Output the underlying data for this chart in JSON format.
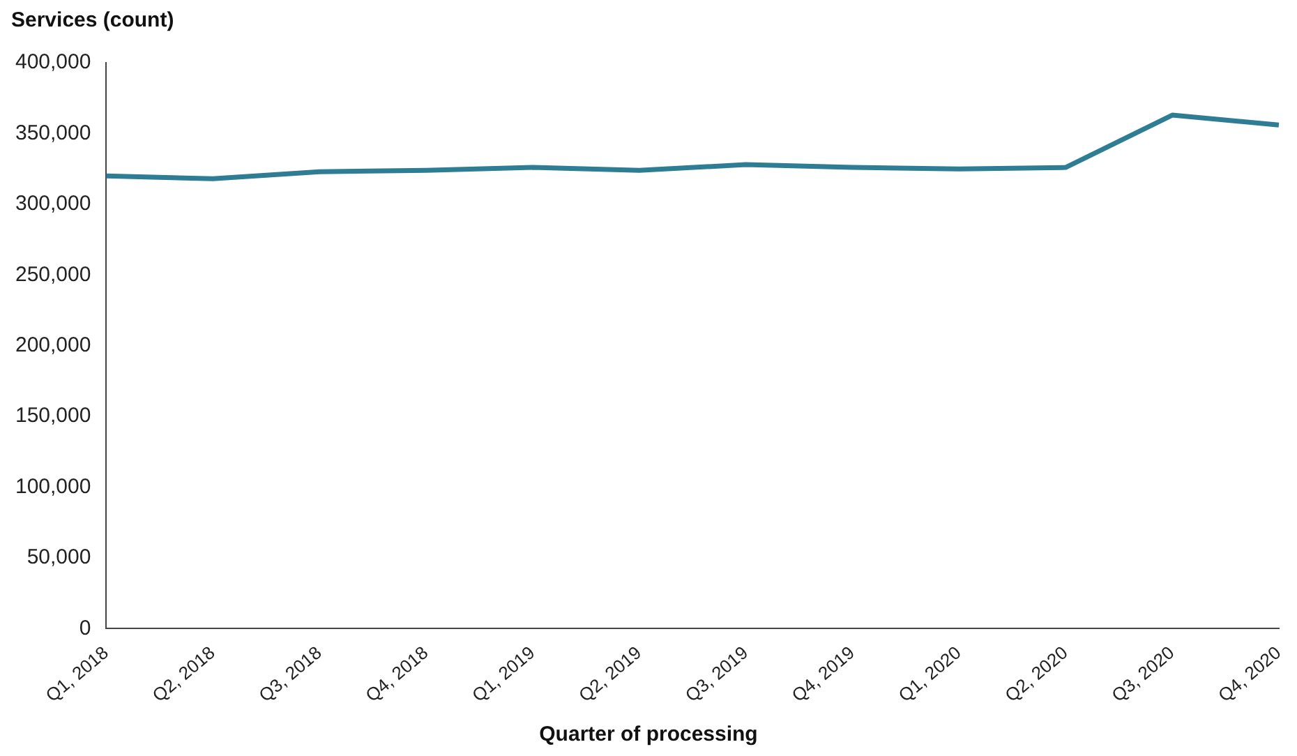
{
  "chart_data": {
    "type": "line",
    "ylabel": "Services (count)",
    "xlabel": "Quarter of processing",
    "categories": [
      "Q1, 2018",
      "Q2, 2018",
      "Q3, 2018",
      "Q4, 2018",
      "Q1, 2019",
      "Q2, 2019",
      "Q3, 2019",
      "Q4, 2019",
      "Q1, 2020",
      "Q2, 2020",
      "Q3, 2020",
      "Q4, 2020"
    ],
    "series": [
      {
        "color": "#2e7d94",
        "values": [
          320000,
          318000,
          323000,
          324000,
          326000,
          324000,
          328000,
          326000,
          325000,
          326000,
          363000,
          356000
        ]
      }
    ],
    "ylim": [
      0,
      400000
    ],
    "yticks": [
      0,
      {
        "value": 50000,
        "label": "50,000"
      },
      {
        "value": 100000,
        "label": "100,000"
      },
      {
        "value": 150000,
        "label": "150,000"
      },
      {
        "value": 200000,
        "label": "200,000"
      },
      {
        "value": 250000,
        "label": "250,000"
      },
      {
        "value": 300000,
        "label": "300,000"
      },
      {
        "value": 350000,
        "label": "350,000"
      },
      {
        "value": 400000,
        "label": "400,000"
      }
    ],
    "grid": false,
    "legend": false,
    "marker": "none",
    "line_style": "solid"
  }
}
